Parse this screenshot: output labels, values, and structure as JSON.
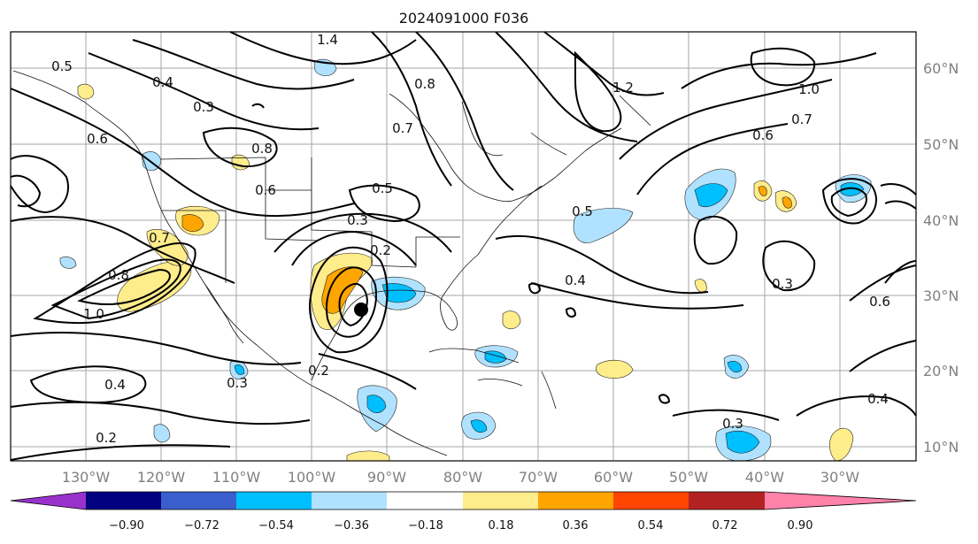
{
  "title": "2024091000 F036",
  "lon_labels": [
    "130°W",
    "120°W",
    "110°W",
    "100°W",
    "90°W",
    "80°W",
    "70°W",
    "60°W",
    "50°W",
    "40°W",
    "30°W"
  ],
  "lat_labels": [
    "60°N",
    "50°N",
    "40°N",
    "30°N",
    "20°N",
    "10°N"
  ],
  "colorbar": {
    "colors": [
      "#9932cc",
      "#000080",
      "#3a5fcd",
      "#00bfff",
      "#b0e2ff",
      "#ffffff",
      "#ffec8b",
      "#ffa500",
      "#ff4500",
      "#b22222",
      "#ff82ab"
    ],
    "tick_labels": [
      "−0.90",
      "−0.72",
      "−0.54",
      "−0.36",
      "−0.18",
      "0.18",
      "0.36",
      "0.54",
      "0.72",
      "0.90"
    ]
  },
  "contour_labels": [
    "1.4",
    "0.8",
    "0.5",
    "0.4",
    "0.3",
    "0.6",
    "0.8",
    "0.6",
    "0.7",
    "0.5",
    "0.3",
    "0.2",
    "1.2",
    "1.0",
    "0.7",
    "0.6",
    "0.5",
    "0.4",
    "0.3",
    "0.8",
    "0.7",
    "1.0",
    "0.4",
    "0.2",
    "0.2",
    "0.3",
    "0.3",
    "0.6",
    "0.4"
  ]
}
